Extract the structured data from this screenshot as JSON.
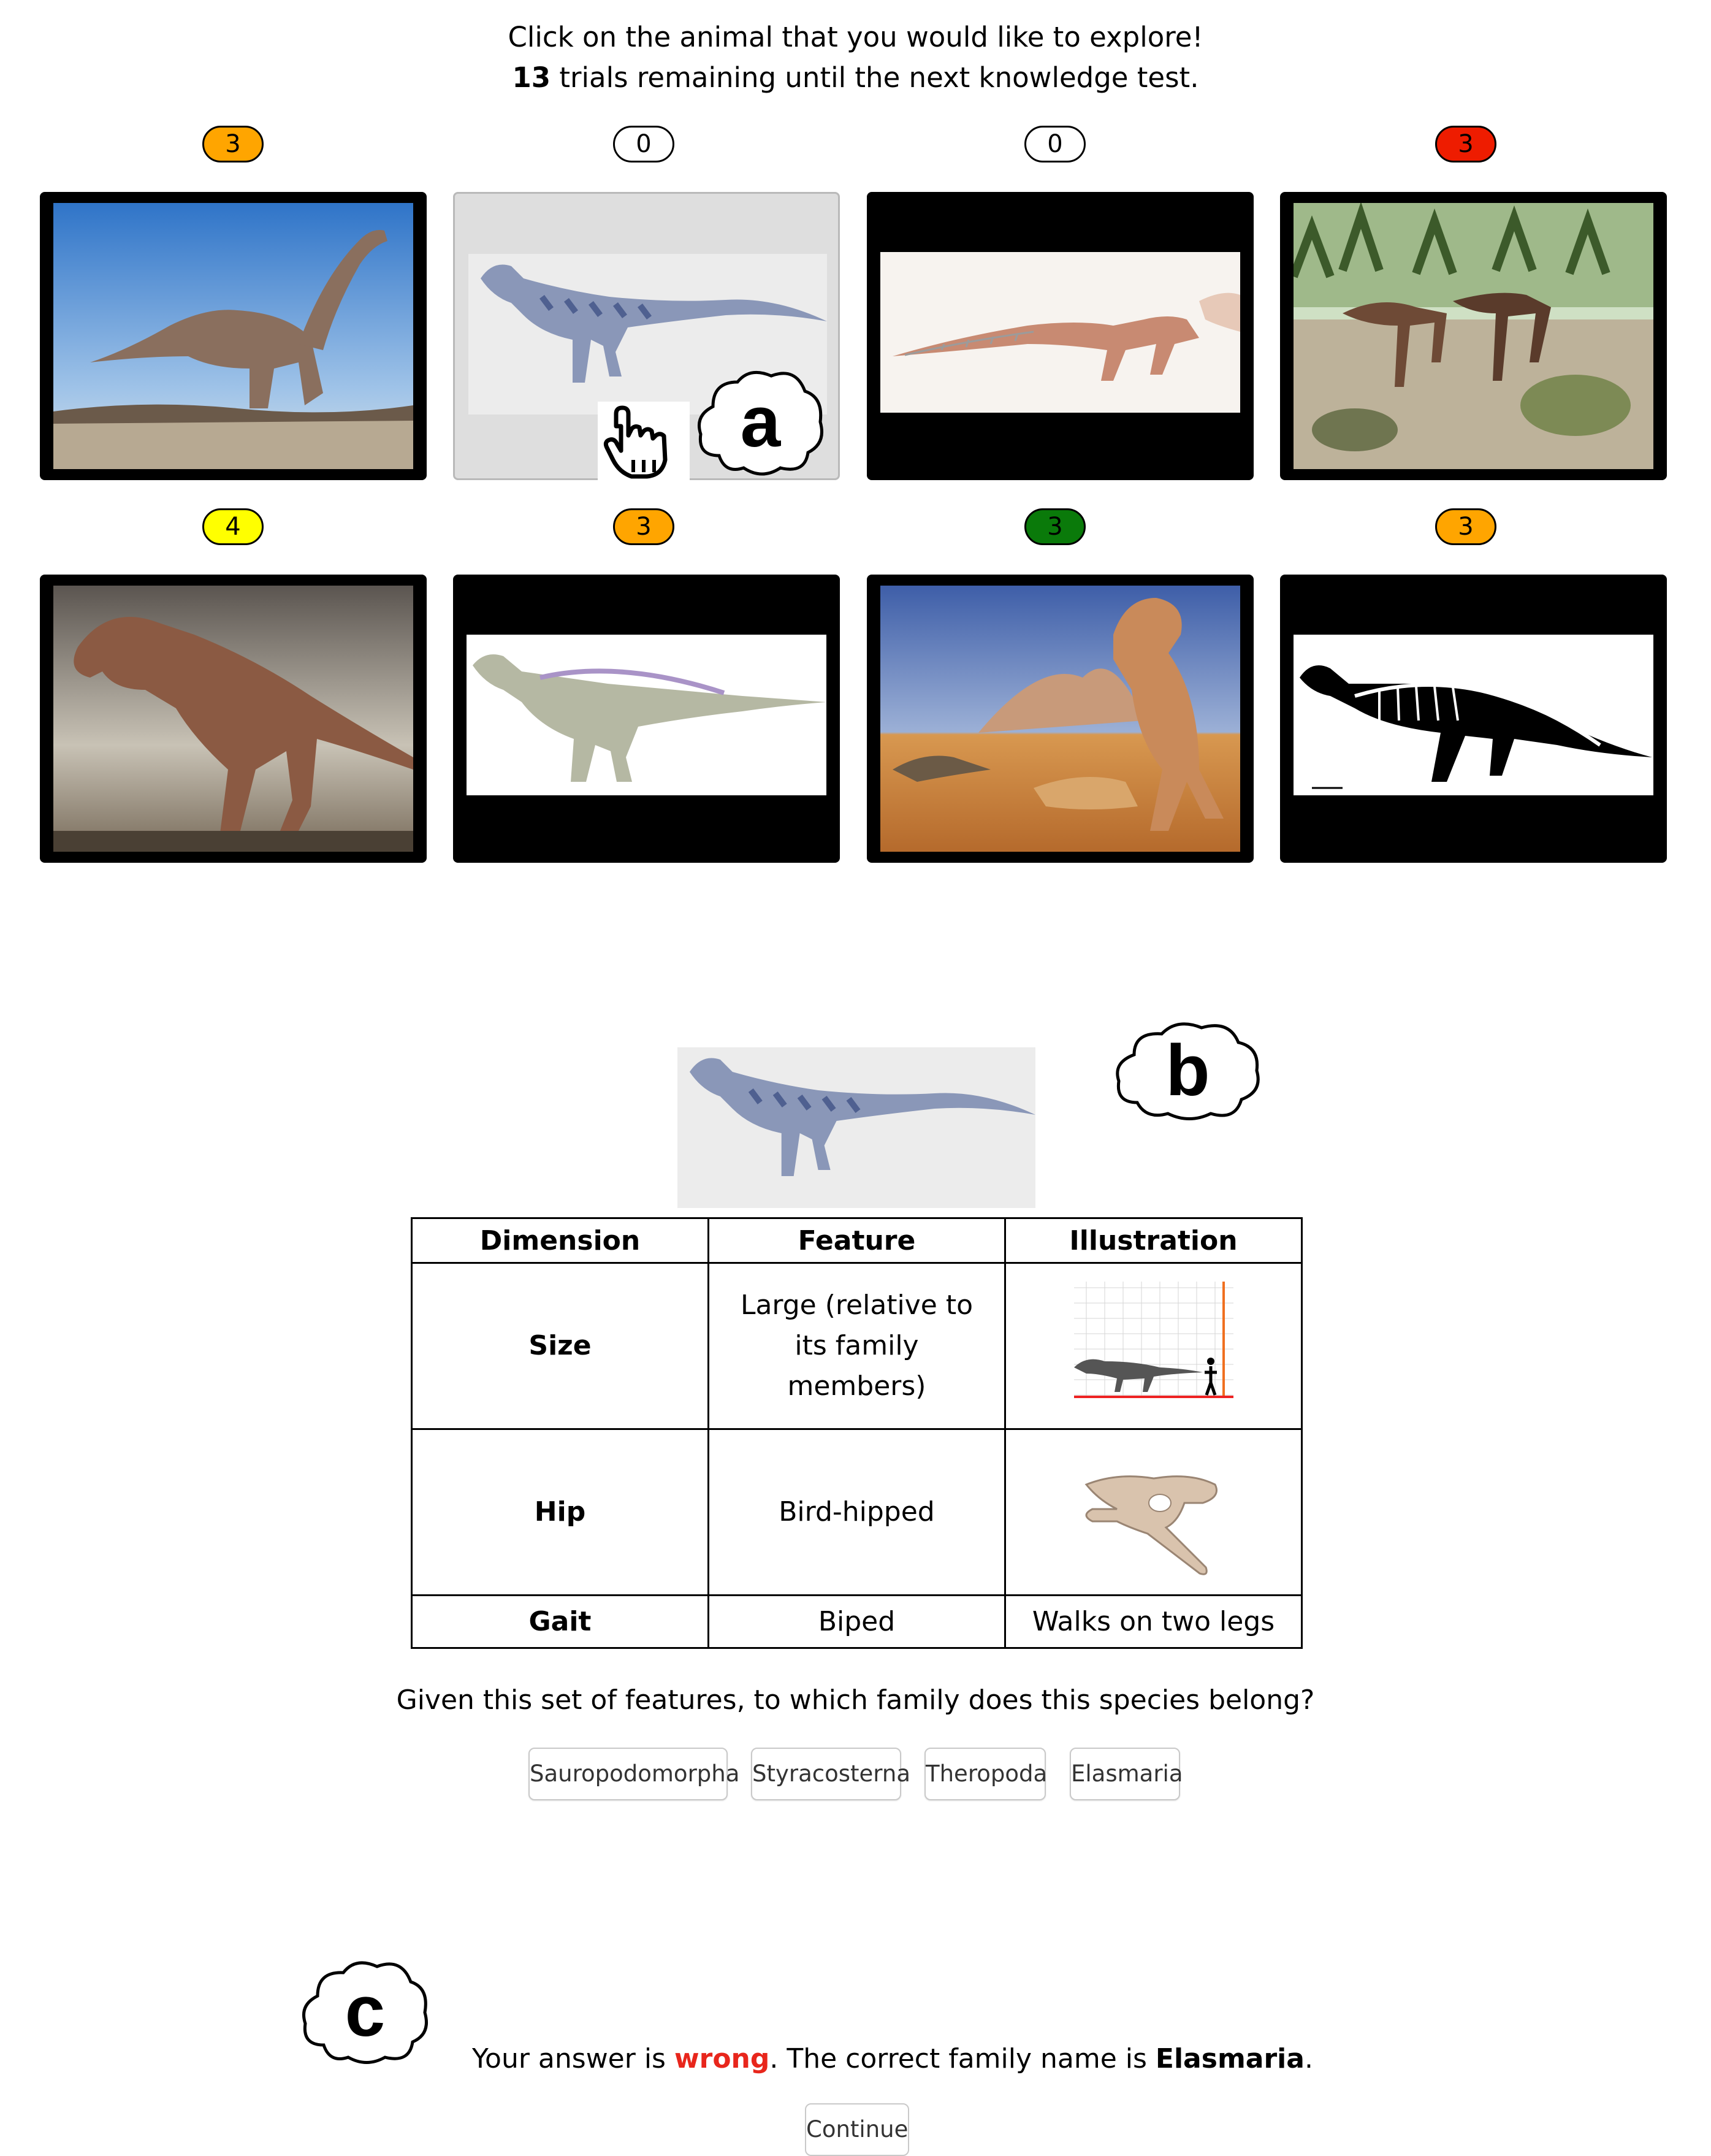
{
  "instructions": {
    "line1": "Click on the animal that you would like to explore!",
    "trials_count": "13",
    "trials_rest": " trials remaining until the next knowledge test."
  },
  "grid": {
    "tiles": [
      {
        "badge": "3",
        "badge_color": "#ffa500",
        "image": "sauropod-dinosaur-photo",
        "selected": false
      },
      {
        "badge": "0",
        "badge_color": "#ffffff",
        "image": "grey-biped-dinosaur-illustration",
        "selected": true
      },
      {
        "badge": "0",
        "badge_color": "#ffffff",
        "image": "skeleton-sketch-dinosaur",
        "selected": false
      },
      {
        "badge": "3",
        "badge_color": "#ee1c00",
        "image": "small-theropods-scene",
        "selected": false
      },
      {
        "badge": "4",
        "badge_color": "#ffff00",
        "image": "large-theropod-roaring",
        "selected": false
      },
      {
        "badge": "3",
        "badge_color": "#ffa500",
        "image": "iguanodont-illustration",
        "selected": false
      },
      {
        "badge": "3",
        "badge_color": "#0a7a0a",
        "image": "feathered-dinosaurs-desert",
        "selected": false
      },
      {
        "badge": "3",
        "badge_color": "#ffa500",
        "image": "skeleton-diagram-white",
        "selected": false
      }
    ]
  },
  "labels": {
    "a": "a",
    "b": "b",
    "c": "c"
  },
  "detail": {
    "image": "grey-biped-dinosaur-illustration",
    "table": {
      "headers": [
        "Dimension",
        "Feature",
        "Illustration"
      ],
      "rows": [
        {
          "dimension": "Size",
          "feature": "Large (relative to its family members)",
          "illustration": "size-chart-silhouette"
        },
        {
          "dimension": "Hip",
          "feature": "Bird-hipped",
          "illustration": "hip-bone-diagram"
        },
        {
          "dimension": "Gait",
          "feature": "Biped",
          "illustration": "Walks on two legs"
        }
      ]
    },
    "question": "Given this set of features, to which family does this species belong?",
    "options": [
      "Sauropodomorpha",
      "Styracosterna",
      "Theropoda",
      "Elasmaria"
    ]
  },
  "feedback": {
    "prefix": "Your answer is ",
    "wrong": "wrong",
    "middle": ". The correct family name is ",
    "family": "Elasmaria",
    "suffix": ".",
    "continue_label": "Continue"
  },
  "colors": {
    "orange": "#ffa500",
    "red": "#ee1c00",
    "yellow": "#ffff00",
    "green": "#0a7a0a",
    "wrong_text": "#e8261c"
  }
}
